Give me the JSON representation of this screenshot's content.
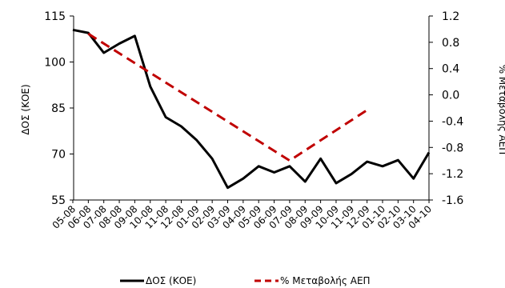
{
  "chart_data": {
    "type": "line",
    "x": [
      "05-08",
      "06-08",
      "07-08",
      "08-08",
      "09-08",
      "10-08",
      "11-08",
      "12-08",
      "01-09",
      "02-09",
      "03-09",
      "04-09",
      "05-09",
      "06-09",
      "07-09",
      "08-09",
      "09-09",
      "10-09",
      "11-09",
      "12-09",
      "01-10",
      "02-10",
      "03-10",
      "04-10"
    ],
    "ylabel_left": "ΔΟΣ (ΚΟΕ)",
    "ylabel_right": "% Μεταβολής ΑΕΠ",
    "ylim_left": [
      55,
      115
    ],
    "yticks_left": [
      "55",
      "70",
      "85",
      "100",
      "115"
    ],
    "ylim_right": [
      -1.6,
      1.2
    ],
    "yticks_right": [
      "-1.6",
      "-1.2",
      "-0.8",
      "-0.4",
      "0.0",
      "0.4",
      "0.8",
      "1.2"
    ],
    "grid": false,
    "legend_position": "bottom",
    "series": [
      {
        "name": "ΔΟΣ (ΚΟΕ)",
        "axis": "left",
        "style": "solid",
        "color": "#000000",
        "values": [
          110.5,
          109.5,
          103,
          106,
          108.5,
          92,
          82,
          79,
          74.5,
          68.5,
          59,
          62,
          66,
          64,
          66,
          61,
          68.5,
          60.5,
          63.5,
          67.5,
          66,
          68,
          62,
          70.5
        ]
      },
      {
        "name": "% Μεταβολής ΑΕΠ",
        "axis": "right",
        "style": "dashed",
        "color": "#c00000",
        "values": [
          null,
          0.93,
          null,
          null,
          null,
          null,
          null,
          null,
          null,
          null,
          null,
          null,
          null,
          null,
          -1.0,
          null,
          null,
          null,
          null,
          -0.23,
          null,
          null,
          null,
          null
        ]
      }
    ]
  }
}
